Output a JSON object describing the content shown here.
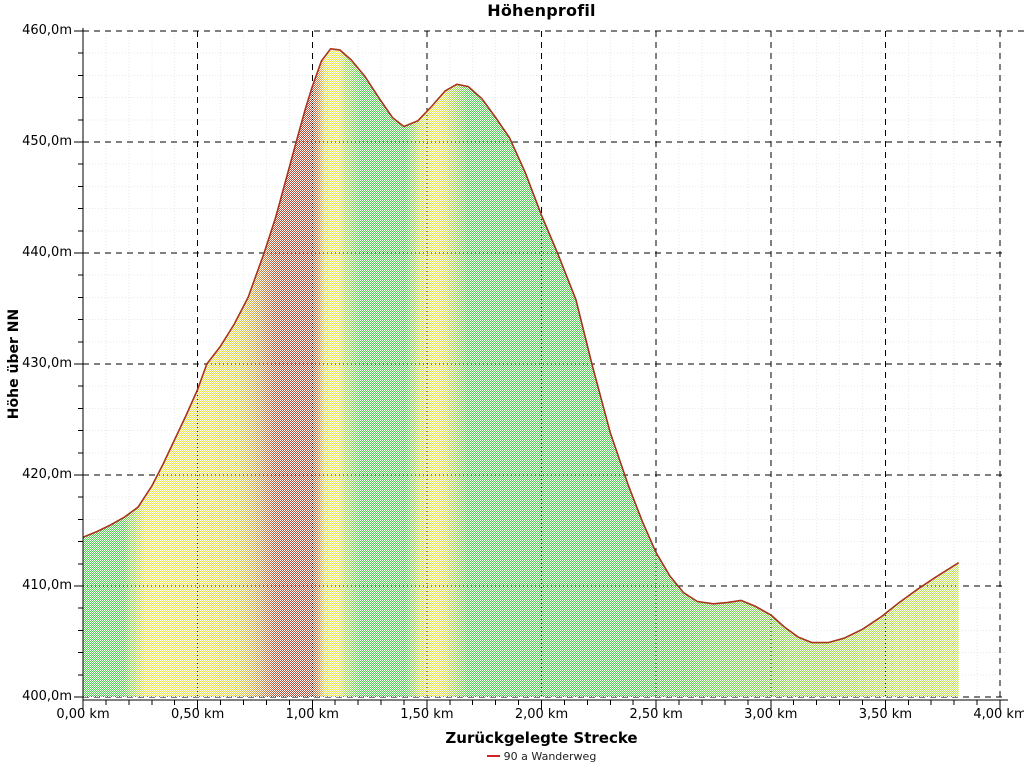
{
  "window": {
    "background": "#ffffff"
  },
  "chart_data": {
    "type": "area",
    "title": "Höhenprofil",
    "xlabel": "Zurückgelegte Strecke",
    "ylabel": "Höhe über NN",
    "x_unit": "km",
    "y_unit": "m",
    "xlim": [
      0,
      4
    ],
    "ylim": [
      400,
      460
    ],
    "x_major_step": 0.5,
    "x_minor_step": 0.1,
    "y_major_step": 10,
    "y_minor_step": 2,
    "x_tick_labels": [
      "0,00 km",
      "0,50 km",
      "1,00 km",
      "1,50 km",
      "2,00 km",
      "2,50 km",
      "3,00 km",
      "3,50 km",
      "4,00 km"
    ],
    "y_tick_labels": [
      "400,0m",
      "410,0m",
      "420,0m",
      "430,0m",
      "440,0m",
      "450,0m",
      "460,0m"
    ],
    "grid": {
      "major_color": "#000000",
      "major_style": "dashed",
      "minor_color": "#e9e9e9",
      "inside_fill_style": "dotted",
      "axis_color": "#000000"
    },
    "legend": [
      {
        "label": "90 a Wanderweg",
        "color": "#cc2428"
      }
    ],
    "series": [
      {
        "name": "90 a Wanderweg",
        "line_color": "#a9341e",
        "fill_style": "slope-gradient with white dither hatch",
        "end_km": 3.82,
        "points": [
          [
            0.0,
            414.4
          ],
          [
            0.06,
            414.9
          ],
          [
            0.12,
            415.5
          ],
          [
            0.18,
            416.2
          ],
          [
            0.24,
            417.1
          ],
          [
            0.3,
            419.0
          ],
          [
            0.35,
            421.0
          ],
          [
            0.4,
            423.2
          ],
          [
            0.45,
            425.4
          ],
          [
            0.5,
            427.7
          ],
          [
            0.54,
            430.0
          ],
          [
            0.6,
            431.6
          ],
          [
            0.66,
            433.6
          ],
          [
            0.72,
            436.0
          ],
          [
            0.79,
            440.0
          ],
          [
            0.84,
            443.2
          ],
          [
            0.88,
            446.2
          ],
          [
            0.93,
            450.0
          ],
          [
            0.97,
            453.0
          ],
          [
            1.0,
            455.0
          ],
          [
            1.04,
            457.3
          ],
          [
            1.08,
            458.4
          ],
          [
            1.12,
            458.3
          ],
          [
            1.17,
            457.4
          ],
          [
            1.23,
            455.9
          ],
          [
            1.29,
            454.0
          ],
          [
            1.35,
            452.2
          ],
          [
            1.4,
            451.4
          ],
          [
            1.46,
            451.9
          ],
          [
            1.52,
            453.2
          ],
          [
            1.58,
            454.6
          ],
          [
            1.63,
            455.2
          ],
          [
            1.68,
            455.0
          ],
          [
            1.74,
            453.9
          ],
          [
            1.8,
            452.2
          ],
          [
            1.86,
            450.4
          ],
          [
            1.93,
            447.2
          ],
          [
            2.0,
            443.4
          ],
          [
            2.07,
            440.0
          ],
          [
            2.15,
            435.8
          ],
          [
            2.22,
            430.0
          ],
          [
            2.3,
            423.8
          ],
          [
            2.38,
            419.0
          ],
          [
            2.44,
            415.8
          ],
          [
            2.5,
            413.0
          ],
          [
            2.56,
            410.9
          ],
          [
            2.62,
            409.4
          ],
          [
            2.68,
            408.6
          ],
          [
            2.75,
            408.4
          ],
          [
            2.81,
            408.5
          ],
          [
            2.87,
            408.7
          ],
          [
            2.93,
            408.2
          ],
          [
            3.0,
            407.4
          ],
          [
            3.06,
            406.3
          ],
          [
            3.12,
            405.4
          ],
          [
            3.18,
            404.9
          ],
          [
            3.25,
            404.9
          ],
          [
            3.32,
            405.3
          ],
          [
            3.4,
            406.1
          ],
          [
            3.48,
            407.2
          ],
          [
            3.56,
            408.5
          ],
          [
            3.64,
            409.7
          ],
          [
            3.72,
            410.8
          ],
          [
            3.82,
            412.1
          ]
        ],
        "slope_gradient": [
          [
            0.0,
            "#4fd24f"
          ],
          [
            0.17,
            "#4fd24f"
          ],
          [
            0.24,
            "#b8de4a"
          ],
          [
            0.27,
            "#e9e44a"
          ],
          [
            0.33,
            "#efe94e"
          ],
          [
            0.42,
            "#e9e24a"
          ],
          [
            0.55,
            "#e6dd48"
          ],
          [
            0.68,
            "#e2cf46"
          ],
          [
            0.76,
            "#d49a40"
          ],
          [
            0.84,
            "#c05036"
          ],
          [
            0.9,
            "#bf4934"
          ],
          [
            1.0,
            "#bf4934"
          ],
          [
            1.03,
            "#d3883e"
          ],
          [
            1.06,
            "#e9e44a"
          ],
          [
            1.11,
            "#ece74c"
          ],
          [
            1.15,
            "#9bdc4b"
          ],
          [
            1.21,
            "#4fd24f"
          ],
          [
            1.41,
            "#4fd24f"
          ],
          [
            1.47,
            "#c8e14c"
          ],
          [
            1.52,
            "#e9e44a"
          ],
          [
            1.57,
            "#e3e048"
          ],
          [
            1.62,
            "#a0da4a"
          ],
          [
            1.68,
            "#4fd24f"
          ],
          [
            2.4,
            "#4fd24f"
          ],
          [
            2.7,
            "#67d44e"
          ],
          [
            3.0,
            "#85d850"
          ],
          [
            3.3,
            "#a5de52"
          ],
          [
            3.55,
            "#b9e254"
          ],
          [
            3.82,
            "#c0e455"
          ]
        ]
      }
    ]
  }
}
